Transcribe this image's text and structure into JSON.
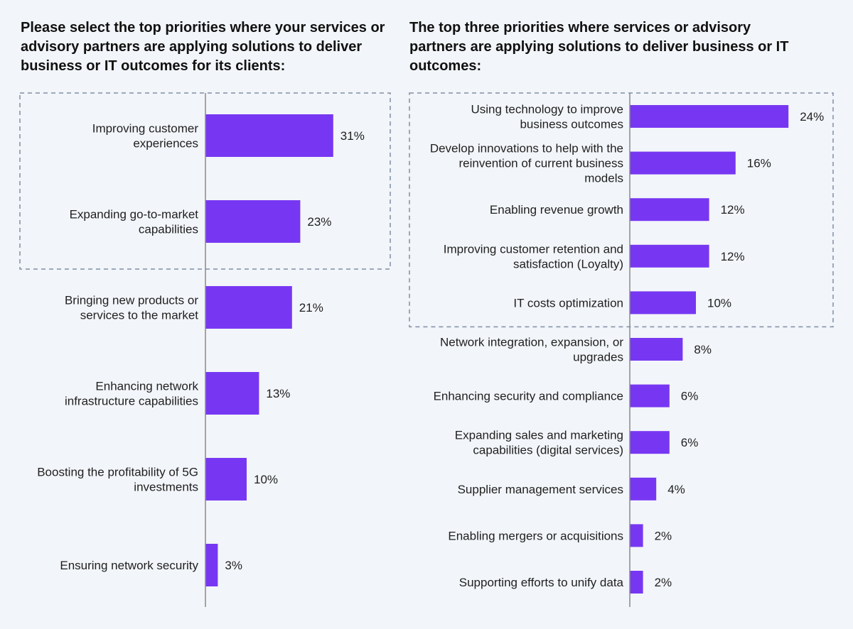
{
  "chart_data": [
    {
      "type": "bar",
      "orientation": "horizontal",
      "title": "Please select the top priorities where your services or advisory partners are applying solutions to deliver business or IT outcomes for its clients:",
      "categories": [
        [
          "Improving customer",
          "experiences"
        ],
        [
          "Expanding go-to-market",
          "capabilities"
        ],
        [
          "Bringing new products or",
          "services to the market"
        ],
        [
          "Enhancing network",
          "infrastructure capabilities"
        ],
        [
          "Boosting the profitability of 5G",
          "investments"
        ],
        [
          "Ensuring network security"
        ]
      ],
      "values": [
        31,
        23,
        21,
        13,
        10,
        3
      ],
      "value_labels": [
        "31%",
        "23%",
        "21%",
        "13%",
        "10%",
        "3%"
      ],
      "highlighted_count": 2,
      "bar_color": "#7737f2"
    },
    {
      "type": "bar",
      "orientation": "horizontal",
      "title": "The top three priorities where services or advisory partners are applying solutions to deliver business or IT outcomes:",
      "categories": [
        [
          "Using technology to improve",
          "business outcomes"
        ],
        [
          "Develop innovations to help with the",
          "reinvention of current business",
          "models"
        ],
        [
          "Enabling revenue growth"
        ],
        [
          "Improving customer retention and",
          "satisfaction (Loyalty)"
        ],
        [
          "IT costs optimization"
        ],
        [
          "Network integration, expansion, or",
          "upgrades"
        ],
        [
          "Enhancing security and compliance"
        ],
        [
          "Expanding sales and marketing",
          "capabilities (digital services)"
        ],
        [
          "Supplier management services"
        ],
        [
          "Enabling mergers or acquisitions"
        ],
        [
          "Supporting efforts to unify data"
        ]
      ],
      "values": [
        24,
        16,
        12,
        12,
        10,
        8,
        6,
        6,
        4,
        2,
        2
      ],
      "value_labels": [
        "24%",
        "16%",
        "12%",
        "12%",
        "10%",
        "8%",
        "6%",
        "6%",
        "4%",
        "2%",
        "2%"
      ],
      "highlighted_count": 5,
      "bar_color": "#7737f2"
    }
  ]
}
